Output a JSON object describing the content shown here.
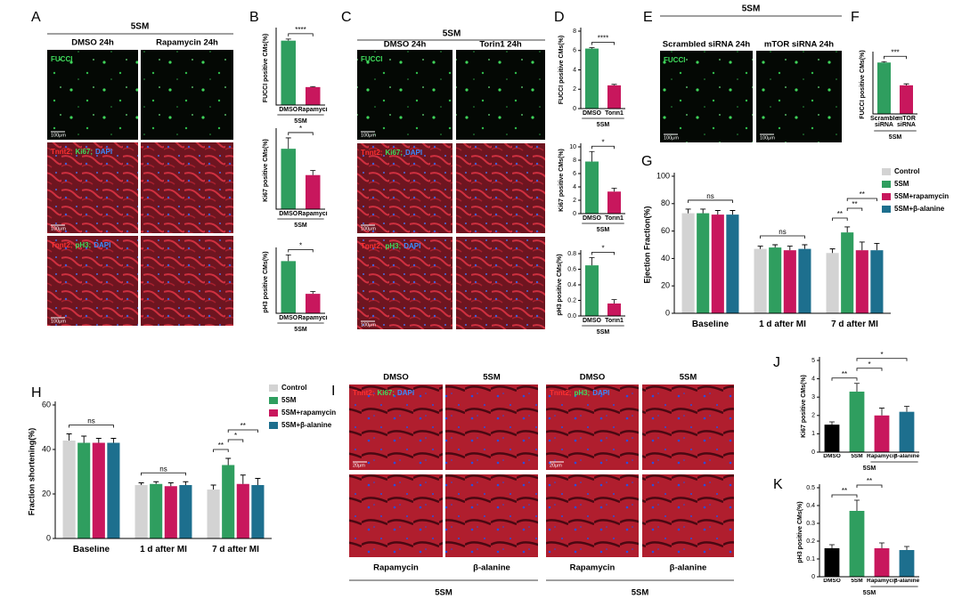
{
  "image_panels": [
    {
      "label": "A",
      "title": "5SM",
      "columns": [
        "DMSO 24h",
        "Rapamycin 24h"
      ],
      "rows": [
        {
          "parts": [
            "FUCCI"
          ],
          "colors": [
            "#3fdc5c"
          ]
        },
        {
          "parts": [
            "Tnnt2;",
            "Ki67;",
            "DAPI"
          ],
          "colors": [
            "#ff3030",
            "#3fdc5c",
            "#3a8cff"
          ]
        },
        {
          "parts": [
            "Tnnt2;",
            "pH3;",
            "DAPI"
          ],
          "colors": [
            "#ff3030",
            "#3fdc5c",
            "#3a8cff"
          ]
        }
      ],
      "scale_bar": "100μm"
    },
    {
      "label": "C",
      "title": "5SM",
      "columns": [
        "DMSO 24h",
        "Torin1 24h"
      ],
      "rows": [
        {
          "parts": [
            "FUCCI"
          ],
          "colors": [
            "#3fdc5c"
          ]
        },
        {
          "parts": [
            "Tnnt2;",
            "Ki67;",
            "DAPI"
          ],
          "colors": [
            "#ff3030",
            "#3fdc5c",
            "#3a8cff"
          ]
        },
        {
          "parts": [
            "Tnnt2;",
            "pH3;",
            "DAPI"
          ],
          "colors": [
            "#ff3030",
            "#3fdc5c",
            "#3a8cff"
          ]
        }
      ],
      "scale_bar": "100μm"
    },
    {
      "label": "E",
      "title": "5SM",
      "columns": [
        "Scrambled siRNA 24h",
        "mTOR siRNA 24h"
      ],
      "rows": [
        {
          "parts": [
            "FUCCI"
          ],
          "colors": [
            "#3fdc5c"
          ]
        }
      ],
      "scale_bar": "100μm"
    }
  ],
  "tissue_panel": {
    "label": "I",
    "groups": [
      {
        "columns": [
          "DMSO",
          "5SM"
        ],
        "row_label": {
          "parts": [
            "Tnnt2;",
            "Ki67;",
            "DAPI"
          ],
          "colors": [
            "#ff3030",
            "#3fdc5c",
            "#3a8cff"
          ]
        },
        "bottom": [
          "Rapamycin",
          "β-alanine"
        ],
        "footer": "5SM"
      },
      {
        "columns": [
          "DMSO",
          "5SM"
        ],
        "row_label": {
          "parts": [
            "Tnnt2;",
            "pH3;",
            "DAPI"
          ],
          "colors": [
            "#ff3030",
            "#3fdc5c",
            "#3a8cff"
          ]
        },
        "bottom": [
          "Rapamycin",
          "β-alanine"
        ],
        "footer": "5SM"
      }
    ],
    "scale_bar": "20μm"
  },
  "chart_data": [
    {
      "type": "bar",
      "label": "B",
      "ylabel": "FUCCI positive CMs(%)",
      "categories": [
        "DMSO",
        "Rapamycin"
      ],
      "values": [
        6.1,
        1.7
      ],
      "errors": [
        0.15,
        0.05
      ],
      "colors": [
        "#2f9e5f",
        "#c8175d"
      ],
      "ylim": [
        0,
        7
      ],
      "group_label": "5SM",
      "significance": [
        {
          "label": "****",
          "between": [
            "DMSO",
            "Rapamycin"
          ]
        }
      ]
    },
    {
      "type": "bar",
      "ylabel": "Ki67 positive CMs(%)",
      "categories": [
        "DMSO",
        "Rapamycin"
      ],
      "values": [
        7.8,
        4.4
      ],
      "errors": [
        1.4,
        0.6
      ],
      "colors": [
        "#2f9e5f",
        "#c8175d"
      ],
      "ylim": [
        0,
        10
      ],
      "group_label": "5SM",
      "significance": [
        {
          "label": "*",
          "between": [
            "DMSO",
            "Rapamycin"
          ]
        }
      ]
    },
    {
      "type": "bar",
      "ylabel": "pH3 positive CMs(%)",
      "categories": [
        "DMSO",
        "Rapamycin"
      ],
      "values": [
        0.67,
        0.25
      ],
      "errors": [
        0.08,
        0.03
      ],
      "colors": [
        "#2f9e5f",
        "#c8175d"
      ],
      "ylim": [
        0,
        0.8
      ],
      "group_label": "5SM",
      "significance": [
        {
          "label": "*",
          "between": [
            "DMSO",
            "Rapamycin"
          ]
        }
      ]
    },
    {
      "type": "bar",
      "label": "D",
      "ylabel": "FUCCI positive CMs(%)",
      "categories": [
        "DMSO",
        "Torin1"
      ],
      "values": [
        6.2,
        2.4
      ],
      "errors": [
        0.1,
        0.1
      ],
      "colors": [
        "#2f9e5f",
        "#c8175d"
      ],
      "ylim": [
        0,
        8
      ],
      "yticks": [
        0,
        2,
        4,
        6,
        8
      ],
      "group_label": "5SM",
      "significance": [
        {
          "label": "****",
          "between": [
            "DMSO",
            "Torin1"
          ]
        }
      ]
    },
    {
      "type": "bar",
      "ylabel": "Ki67 positive CMs(%)",
      "categories": [
        "DMSO",
        "Torin1"
      ],
      "values": [
        7.8,
        3.3
      ],
      "errors": [
        1.5,
        0.5
      ],
      "colors": [
        "#2f9e5f",
        "#c8175d"
      ],
      "ylim": [
        0,
        10
      ],
      "yticks": [
        0,
        2,
        4,
        6,
        8,
        10
      ],
      "group_label": "5SM",
      "significance": [
        {
          "label": "*",
          "between": [
            "DMSO",
            "Torin1"
          ]
        }
      ]
    },
    {
      "type": "bar",
      "ylabel": "pH3 positive CMs(%)",
      "categories": [
        "DMSO",
        "Torin1"
      ],
      "values": [
        0.65,
        0.16
      ],
      "errors": [
        0.1,
        0.05
      ],
      "colors": [
        "#2f9e5f",
        "#c8175d"
      ],
      "ylim": [
        0,
        0.8
      ],
      "yticks": [
        {
          "value": 0,
          "label": "0.0"
        },
        0.2,
        0.4,
        0.6,
        0.8
      ],
      "group_label": "5SM",
      "significance": [
        {
          "label": "*",
          "between": [
            "DMSO",
            "Torin1"
          ]
        }
      ]
    },
    {
      "type": "bar",
      "label": "F",
      "ylabel": "FUCCI positive CMs(%)",
      "categories": [
        "Scrambled siRNA",
        "mTOR siRNA"
      ],
      "values": [
        7.0,
        3.9
      ],
      "errors": [
        0.12,
        0.2
      ],
      "colors": [
        "#2f9e5f",
        "#c8175d"
      ],
      "ylim": [
        0,
        8
      ],
      "group_label": "5SM",
      "significance": [
        {
          "label": "***",
          "between": [
            "Scrambled siRNA",
            "mTOR siRNA"
          ]
        }
      ]
    },
    {
      "type": "grouped_bar",
      "label": "G",
      "ylabel": "Ejection Fraction(%)",
      "categories": [
        "Baseline",
        "1 d after MI",
        "7 d after MI"
      ],
      "series": [
        {
          "name": "Control",
          "color": "#d3d3d3",
          "values": [
            73,
            47,
            44
          ],
          "errors": [
            3,
            2,
            3
          ]
        },
        {
          "name": "5SM",
          "color": "#2f9e5f",
          "values": [
            73,
            48,
            59
          ],
          "errors": [
            3,
            2,
            4
          ]
        },
        {
          "name": "5SM+rapamycin",
          "color": "#c8175d",
          "values": [
            72,
            46,
            46
          ],
          "errors": [
            3,
            3,
            6
          ]
        },
        {
          "name": "5SM+β-alanine",
          "color": "#1d6f8e",
          "values": [
            72,
            47,
            46
          ],
          "errors": [
            3,
            3,
            5
          ]
        }
      ],
      "ylim": [
        0,
        100
      ],
      "yticks": [
        0,
        20,
        40,
        60,
        80,
        100
      ],
      "legend": "upper right",
      "significance": [
        {
          "label": "ns",
          "group": "Baseline",
          "between": [
            "Control",
            "5SM+β-alanine"
          ]
        },
        {
          "label": "ns",
          "group": "1 d after MI",
          "between": [
            "Control",
            "5SM+β-alanine"
          ]
        },
        {
          "label": "**",
          "group": "7 d after MI",
          "between": [
            "Control",
            "5SM"
          ]
        },
        {
          "label": "**",
          "group": "7 d after MI",
          "between": [
            "5SM",
            "5SM+rapamycin"
          ]
        },
        {
          "label": "**",
          "group": "7 d after MI",
          "between": [
            "5SM",
            "5SM+β-alanine"
          ]
        }
      ]
    },
    {
      "type": "grouped_bar",
      "label": "H",
      "ylabel": "Fraction shortening(%)",
      "categories": [
        "Baseline",
        "1 d after MI",
        "7 d after MI"
      ],
      "series": [
        {
          "name": "Control",
          "color": "#d3d3d3",
          "values": [
            44,
            24,
            22
          ],
          "errors": [
            3,
            1,
            2
          ]
        },
        {
          "name": "5SM",
          "color": "#2f9e5f",
          "values": [
            43,
            24.5,
            33
          ],
          "errors": [
            3,
            1,
            3
          ]
        },
        {
          "name": "5SM+rapamycin",
          "color": "#c8175d",
          "values": [
            43,
            23.5,
            24.5
          ],
          "errors": [
            2,
            1.5,
            4
          ]
        },
        {
          "name": "5SM+β-alanine",
          "color": "#1d6f8e",
          "values": [
            43,
            24,
            24
          ],
          "errors": [
            2,
            1.5,
            3
          ]
        }
      ],
      "ylim": [
        0,
        60
      ],
      "yticks": [
        0,
        20,
        40,
        60
      ],
      "legend": "upper right",
      "significance": [
        {
          "label": "ns",
          "group": "Baseline",
          "between": [
            "Control",
            "5SM+β-alanine"
          ]
        },
        {
          "label": "ns",
          "group": "1 d after MI",
          "between": [
            "Control",
            "5SM+β-alanine"
          ]
        },
        {
          "label": "**",
          "group": "7 d after MI",
          "between": [
            "Control",
            "5SM"
          ]
        },
        {
          "label": "*",
          "group": "7 d after MI",
          "between": [
            "5SM",
            "5SM+rapamycin"
          ]
        },
        {
          "label": "**",
          "group": "7 d after MI",
          "between": [
            "5SM",
            "5SM+β-alanine"
          ]
        }
      ]
    },
    {
      "type": "bar",
      "label": "J",
      "ylabel": "Ki67 positive CMs(%)",
      "categories": [
        "DMSO",
        "5SM",
        "Rapamycin",
        "β-alanine"
      ],
      "values": [
        1.5,
        3.3,
        2.0,
        2.2
      ],
      "errors": [
        0.15,
        0.45,
        0.4,
        0.3
      ],
      "colors": [
        "#000000",
        "#2f9e5f",
        "#c8175d",
        "#1d6f8e"
      ],
      "ylim": [
        0,
        5
      ],
      "yticks": [
        0,
        1,
        2,
        3,
        4,
        5
      ],
      "group_label": "5SM",
      "group_between": [
        "Rapamycin",
        "β-alanine"
      ],
      "significance": [
        {
          "label": "**",
          "between": [
            "DMSO",
            "5SM"
          ]
        },
        {
          "label": "*",
          "between": [
            "5SM",
            "Rapamycin"
          ]
        },
        {
          "label": "*",
          "between": [
            "5SM",
            "β-alanine"
          ]
        }
      ]
    },
    {
      "type": "bar",
      "label": "K",
      "ylabel": "pH3 positive CMs(%)",
      "categories": [
        "DMSO",
        "5SM",
        "Rapamycin",
        "β-alanine"
      ],
      "values": [
        0.16,
        0.37,
        0.16,
        0.15
      ],
      "errors": [
        0.02,
        0.06,
        0.03,
        0.02
      ],
      "colors": [
        "#000000",
        "#2f9e5f",
        "#c8175d",
        "#1d6f8e"
      ],
      "ylim": [
        0,
        0.5
      ],
      "yticks": [
        0,
        0.1,
        0.2,
        0.3,
        0.4,
        0.5
      ],
      "group_label": "5SM",
      "group_between": [
        "Rapamycin",
        "β-alanine"
      ],
      "significance": [
        {
          "label": "**",
          "between": [
            "DMSO",
            "5SM"
          ]
        },
        {
          "label": "**",
          "between": [
            "5SM",
            "Rapamycin"
          ]
        }
      ]
    }
  ]
}
